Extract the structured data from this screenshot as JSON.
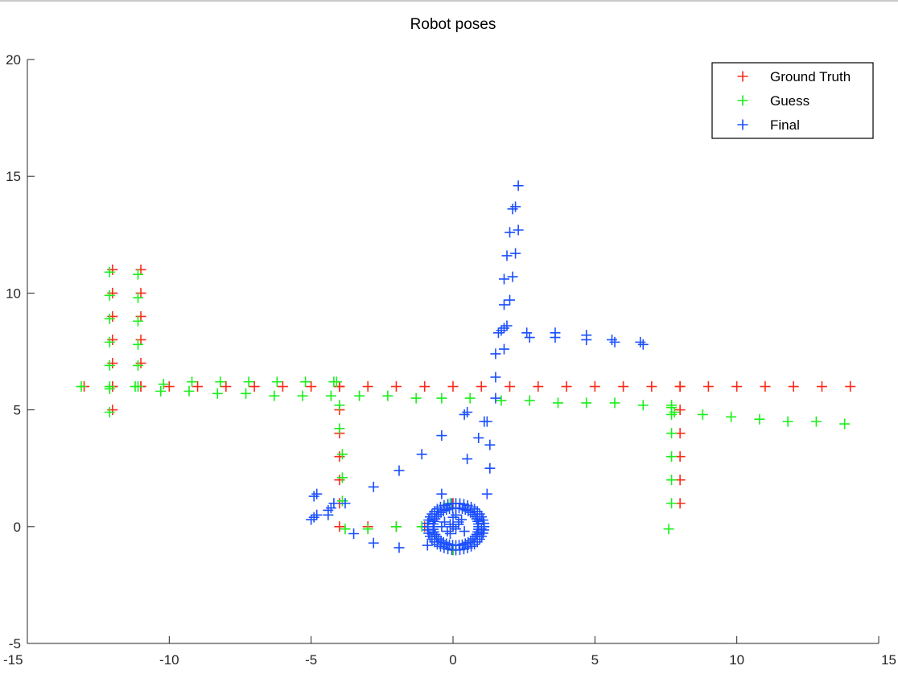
{
  "chart_data": {
    "type": "scatter",
    "title": "Robot poses",
    "xlabel": "",
    "ylabel": "",
    "xlim": [
      -15,
      15
    ],
    "ylim": [
      -5,
      20
    ],
    "xticks": [
      -15,
      -10,
      -5,
      0,
      5,
      10,
      15
    ],
    "yticks": [
      -5,
      0,
      5,
      10,
      15,
      20
    ],
    "grid": false,
    "legend_position": "top-right",
    "marker": "+",
    "series": [
      {
        "name": "Ground Truth",
        "color": "#ff2a1a",
        "points": [
          [
            -13,
            6
          ],
          [
            -12,
            6
          ],
          [
            -11,
            6
          ],
          [
            -10,
            6
          ],
          [
            -9,
            6
          ],
          [
            -8,
            6
          ],
          [
            -7,
            6
          ],
          [
            -6,
            6
          ],
          [
            -5,
            6
          ],
          [
            -4,
            6
          ],
          [
            -3,
            6
          ],
          [
            -2,
            6
          ],
          [
            -1,
            6
          ],
          [
            0,
            6
          ],
          [
            1,
            6
          ],
          [
            2,
            6
          ],
          [
            3,
            6
          ],
          [
            4,
            6
          ],
          [
            5,
            6
          ],
          [
            6,
            6
          ],
          [
            7,
            6
          ],
          [
            8,
            6
          ],
          [
            9,
            6
          ],
          [
            10,
            6
          ],
          [
            11,
            6
          ],
          [
            12,
            6
          ],
          [
            13,
            6
          ],
          [
            14,
            6
          ],
          [
            -12,
            5
          ],
          [
            -12,
            6
          ],
          [
            -12,
            7
          ],
          [
            -12,
            8
          ],
          [
            -12,
            9
          ],
          [
            -12,
            10
          ],
          [
            -12,
            11
          ],
          [
            -11,
            6
          ],
          [
            -11,
            7
          ],
          [
            -11,
            8
          ],
          [
            -11,
            9
          ],
          [
            -11,
            10
          ],
          [
            -11,
            11
          ],
          [
            -4,
            6
          ],
          [
            -4,
            5
          ],
          [
            -4,
            4
          ],
          [
            -4,
            3
          ],
          [
            -4,
            2
          ],
          [
            -4,
            1
          ],
          [
            -4,
            0
          ],
          [
            -3,
            0
          ],
          [
            -2,
            0
          ],
          [
            -1,
            0
          ],
          [
            0,
            0
          ],
          [
            0,
            1
          ],
          [
            0,
            -1
          ],
          [
            8,
            6
          ],
          [
            8,
            5
          ],
          [
            8,
            4
          ],
          [
            8,
            3
          ],
          [
            8,
            2
          ],
          [
            8,
            1
          ]
        ]
      },
      {
        "name": "Guess",
        "color": "#1aef1a",
        "points": [
          [
            -13.1,
            6.0
          ],
          [
            -12.1,
            6.0
          ],
          [
            -11.1,
            6.0
          ],
          [
            -10.2,
            6.1
          ],
          [
            -9.2,
            6.2
          ],
          [
            -8.2,
            6.2
          ],
          [
            -7.2,
            6.2
          ],
          [
            -6.2,
            6.2
          ],
          [
            -5.2,
            6.2
          ],
          [
            -4.2,
            6.2
          ],
          [
            -10.3,
            5.8
          ],
          [
            -9.3,
            5.8
          ],
          [
            -8.3,
            5.7
          ],
          [
            -7.3,
            5.7
          ],
          [
            -6.3,
            5.6
          ],
          [
            -5.3,
            5.6
          ],
          [
            -4.3,
            5.6
          ],
          [
            -3.3,
            5.6
          ],
          [
            -2.3,
            5.6
          ],
          [
            -1.3,
            5.5
          ],
          [
            -0.4,
            5.5
          ],
          [
            0.6,
            5.5
          ],
          [
            1.7,
            5.4
          ],
          [
            2.7,
            5.4
          ],
          [
            3.7,
            5.3
          ],
          [
            4.7,
            5.3
          ],
          [
            5.7,
            5.3
          ],
          [
            6.7,
            5.2
          ],
          [
            7.7,
            5.1
          ],
          [
            8.8,
            4.8
          ],
          [
            9.8,
            4.7
          ],
          [
            10.8,
            4.6
          ],
          [
            11.8,
            4.5
          ],
          [
            12.8,
            4.5
          ],
          [
            13.8,
            4.4
          ],
          [
            -12.1,
            4.9
          ],
          [
            -12.1,
            5.9
          ],
          [
            -12.1,
            6.9
          ],
          [
            -12.1,
            7.9
          ],
          [
            -12.1,
            8.9
          ],
          [
            -12.1,
            9.9
          ],
          [
            -12.1,
            10.9
          ],
          [
            -11.2,
            6.0
          ],
          [
            -11.1,
            6.9
          ],
          [
            -11.1,
            7.8
          ],
          [
            -11.1,
            8.8
          ],
          [
            -11.1,
            9.8
          ],
          [
            -11.1,
            10.8
          ],
          [
            -4.1,
            6.2
          ],
          [
            -4.0,
            5.2
          ],
          [
            -4.0,
            4.2
          ],
          [
            -3.9,
            3.1
          ],
          [
            -3.9,
            2.1
          ],
          [
            -3.9,
            1.1
          ],
          [
            -3.8,
            -0.1
          ],
          [
            -3.0,
            -0.1
          ],
          [
            -2.0,
            0.0
          ],
          [
            -1.1,
            0.0
          ],
          [
            -0.1,
            1.0
          ],
          [
            0.0,
            -1.0
          ],
          [
            7.7,
            5.2
          ],
          [
            7.7,
            4.0
          ],
          [
            7.7,
            3.0
          ],
          [
            7.7,
            2.0
          ],
          [
            7.7,
            1.0
          ],
          [
            7.6,
            -0.1
          ],
          [
            7.7,
            4.8
          ],
          [
            7.8,
            4.9
          ]
        ]
      },
      {
        "name": "Final",
        "color": "#1a4fff",
        "points": [
          [
            -5.0,
            0.3
          ],
          [
            -4.9,
            0.4
          ],
          [
            -4.8,
            0.5
          ],
          [
            -4.9,
            1.3
          ],
          [
            -4.8,
            1.4
          ],
          [
            -4.4,
            0.5
          ],
          [
            -4.4,
            0.7
          ],
          [
            -4.3,
            0.8
          ],
          [
            -4.2,
            1.0
          ],
          [
            -3.8,
            1.0
          ],
          [
            -3.5,
            -0.3
          ],
          [
            -2.8,
            -0.7
          ],
          [
            -2.8,
            1.7
          ],
          [
            -1.9,
            -0.9
          ],
          [
            -1.9,
            2.4
          ],
          [
            -1.1,
            3.1
          ],
          [
            -0.9,
            -0.8
          ],
          [
            -0.4,
            3.9
          ],
          [
            -0.4,
            1.4
          ],
          [
            0.4,
            4.8
          ],
          [
            0.5,
            4.9
          ],
          [
            0.5,
            2.9
          ],
          [
            0.9,
            3.8
          ],
          [
            1.1,
            4.5
          ],
          [
            1.2,
            4.5
          ],
          [
            1.3,
            3.5
          ],
          [
            1.3,
            2.5
          ],
          [
            1.2,
            1.4
          ],
          [
            1.0,
            -0.1
          ],
          [
            1.5,
            5.5
          ],
          [
            1.5,
            6.4
          ],
          [
            1.5,
            7.4
          ],
          [
            1.6,
            8.3
          ],
          [
            1.7,
            8.4
          ],
          [
            1.8,
            8.5
          ],
          [
            1.8,
            7.6
          ],
          [
            1.9,
            8.6
          ],
          [
            1.8,
            9.5
          ],
          [
            2.0,
            9.7
          ],
          [
            1.8,
            10.6
          ],
          [
            2.1,
            10.7
          ],
          [
            1.9,
            11.6
          ],
          [
            2.2,
            11.7
          ],
          [
            2.0,
            12.6
          ],
          [
            2.3,
            12.7
          ],
          [
            2.1,
            13.6
          ],
          [
            2.2,
            13.7
          ],
          [
            2.3,
            14.6
          ],
          [
            2.6,
            8.3
          ],
          [
            2.7,
            8.1
          ],
          [
            3.6,
            8.3
          ],
          [
            3.6,
            8.1
          ],
          [
            4.7,
            8.2
          ],
          [
            4.7,
            8.0
          ],
          [
            5.6,
            8.0
          ],
          [
            5.7,
            7.9
          ],
          [
            6.6,
            7.9
          ],
          [
            6.7,
            7.8
          ],
          [
            0.0,
            0.0
          ],
          [
            -0.1,
            0.1
          ],
          [
            0.1,
            -0.1
          ],
          [
            0.2,
            0.2
          ],
          [
            -0.2,
            -0.2
          ],
          [
            0.3,
            0.3
          ],
          [
            0.0,
            0.4
          ],
          [
            -0.3,
            0.2
          ],
          [
            0.4,
            -0.2
          ],
          [
            -0.1,
            -0.3
          ],
          [
            0.2,
            0.1
          ],
          [
            -0.4,
            0.0
          ],
          [
            0.1,
            0.5
          ]
        ],
        "ring": {
          "center": [
            0.1,
            0.0
          ],
          "radii": [
            1.0,
            0.8
          ],
          "count": 44
        }
      }
    ]
  }
}
